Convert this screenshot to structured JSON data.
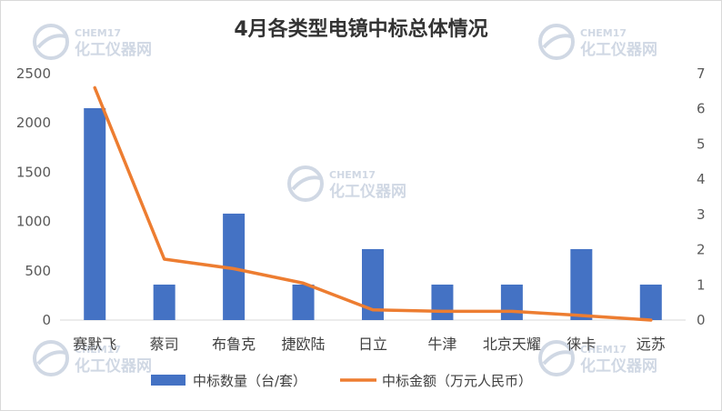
{
  "chart_data": {
    "type": "bar",
    "title": "4月各类型电镜中标总体情况",
    "categories": [
      "赛默飞",
      "蔡司",
      "布鲁克",
      "捷欧陆",
      "日立",
      "牛津",
      "北京天耀",
      "徕卡",
      "远苏"
    ],
    "y_left": {
      "min": 0,
      "max": 2500,
      "ticks": [
        0,
        500,
        1000,
        1500,
        2000,
        2500
      ]
    },
    "y_right": {
      "min": 0,
      "max": 7,
      "ticks": [
        0,
        1,
        2,
        3,
        4,
        5,
        6,
        7
      ]
    },
    "grid": false,
    "legend_position": "bottom",
    "series": [
      {
        "name": "中标数量（台/套）",
        "type": "bar",
        "axis": "left",
        "color": "#4472c4",
        "values": [
          2150,
          360,
          1080,
          360,
          720,
          360,
          360,
          720,
          360
        ]
      },
      {
        "name": "中标金额（万元人民币）",
        "type": "line",
        "axis": "right",
        "color": "#ed7d31",
        "values": [
          6.6,
          1.73,
          1.46,
          1.05,
          0.29,
          0.25,
          0.25,
          0.13,
          0.0
        ]
      }
    ]
  },
  "watermark": {
    "brand": "CHEM17",
    "name": "化工仪器网",
    "color": "#d0d8e4"
  }
}
